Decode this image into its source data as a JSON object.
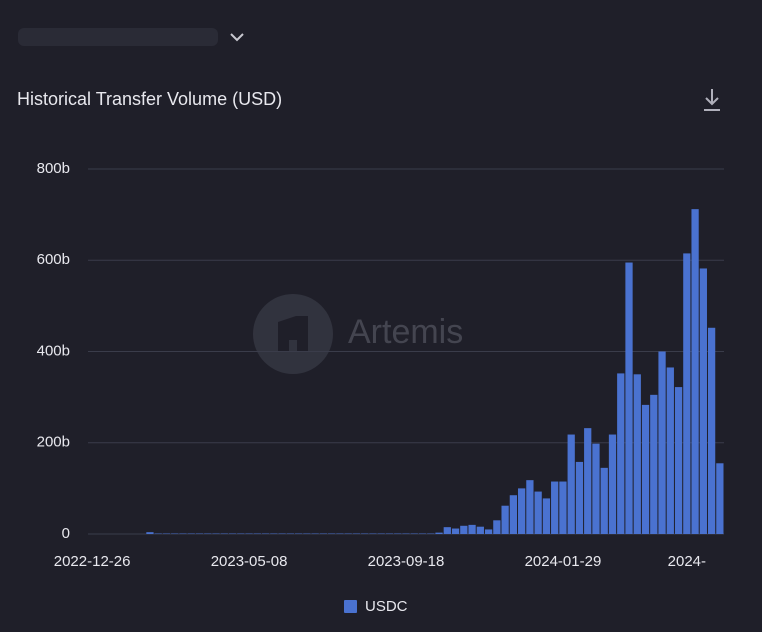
{
  "chart_data": {
    "type": "bar",
    "title": "Historical Transfer Volume (USD)",
    "watermark": "Artemis",
    "categories": [
      "2022-12-26",
      null,
      null,
      null,
      null,
      null,
      null,
      null,
      null,
      null,
      null,
      null,
      null,
      null,
      null,
      null,
      null,
      null,
      null,
      "2023-05-08",
      null,
      null,
      null,
      null,
      null,
      null,
      null,
      null,
      null,
      null,
      null,
      null,
      null,
      null,
      null,
      null,
      null,
      null,
      "2023-09-18",
      null,
      null,
      null,
      null,
      null,
      null,
      null,
      null,
      null,
      null,
      null,
      null,
      null,
      null,
      null,
      null,
      null,
      null,
      "2024-01-29",
      null,
      null,
      null,
      null,
      null,
      null,
      null,
      null,
      null,
      null,
      null,
      null,
      null,
      null,
      "2024-",
      null,
      null,
      null,
      null
    ],
    "series": [
      {
        "name": "USDC",
        "color": "#4a72d0",
        "values": [
          0,
          0,
          0,
          0,
          0,
          0,
          0,
          4,
          1,
          1,
          1,
          1,
          1,
          1,
          1,
          1,
          1,
          1,
          1,
          1,
          1,
          1,
          1,
          1,
          1,
          1,
          1,
          1,
          1,
          1,
          1,
          1,
          1,
          1,
          1,
          1,
          1,
          1,
          1,
          1,
          1,
          1,
          3,
          15,
          12,
          18,
          20,
          16,
          10,
          30,
          62,
          85,
          100,
          118,
          93,
          78,
          115,
          115,
          218,
          158,
          232,
          198,
          145,
          218,
          352,
          595,
          350,
          283,
          305,
          400,
          365,
          322,
          615,
          712,
          582,
          452,
          155
        ]
      }
    ],
    "ylim": [
      0,
      800
    ],
    "yticks": [
      0,
      {
        "value": 200,
        "label": "200b"
      },
      {
        "value": 400,
        "label": "400b"
      },
      {
        "value": 600,
        "label": "600b"
      },
      {
        "value": 800,
        "label": "800b"
      }
    ],
    "grid": true,
    "legend": "bottom"
  }
}
